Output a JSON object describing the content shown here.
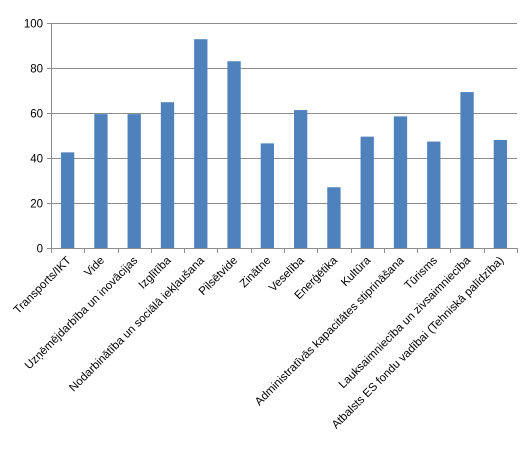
{
  "chart_data": {
    "type": "bar",
    "categories": [
      "Transports/IKT",
      "Vide",
      "Uzņēmējdarbība un inovācijas",
      "Izglītība",
      "Nodarbinātība un sociālā iekļaušana",
      "Pilsētvide",
      "Zinātne",
      "Veselība",
      "Enerģētika",
      "Kultūra",
      "Administratīvās kapacitātes stiprināšana",
      "Tūrisms",
      "Lauksaimniecība un zivsaimniecība",
      "Atbalsts ES fondu vadībai (Tehniskā palīdzība)"
    ],
    "values": [
      42.5,
      59.5,
      59.5,
      64.8,
      92.8,
      83.0,
      46.5,
      61.3,
      27.0,
      49.5,
      58.5,
      47.3,
      69.3,
      48.0
    ],
    "ylim": [
      0,
      100
    ],
    "yticks": [
      0,
      20,
      40,
      60,
      80,
      100
    ],
    "grid": true,
    "bar_color": "#4f81bd",
    "title": "",
    "xlabel": "",
    "ylabel": ""
  }
}
